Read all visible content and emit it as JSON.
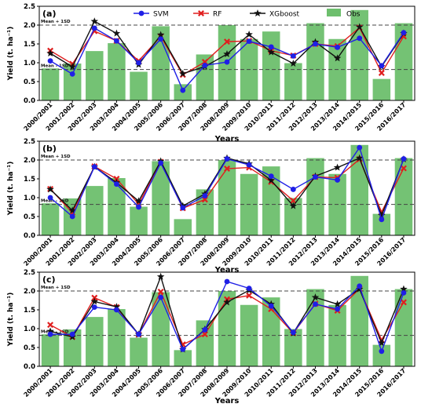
{
  "legend": {
    "items": [
      {
        "label": "SVM",
        "color": "#1f1fe6",
        "marker": "circle"
      },
      {
        "label": "RF",
        "color": "#e01e1e",
        "marker": "x"
      },
      {
        "label": "XGboost",
        "color": "#111111",
        "marker": "star"
      },
      {
        "label": "Obs",
        "color": "#6dbf6d",
        "marker": "bar"
      }
    ]
  },
  "chart_data": [
    {
      "panel": "(a)",
      "type": "bar+line",
      "categories": [
        "2000/2001",
        "2001/2002",
        "2002/2003",
        "2003/2004",
        "2004/2005",
        "2005/2006",
        "2006/2007",
        "2007/2008",
        "2008/2009",
        "2009/2010",
        "2010/2011",
        "2011/2012",
        "2012/2013",
        "2013/2014",
        "2014/2015",
        "2015/2016",
        "2016/2017"
      ],
      "obs": [
        0.85,
        0.98,
        1.31,
        1.52,
        0.76,
        1.97,
        0.43,
        1.22,
        2.0,
        1.63,
        1.83,
        0.99,
        2.05,
        1.63,
        2.4,
        0.57,
        2.05
      ],
      "series": [
        {
          "name": "SVM",
          "values": [
            1.05,
            0.7,
            1.92,
            1.58,
            1.0,
            1.63,
            0.27,
            0.93,
            1.02,
            1.57,
            1.42,
            1.18,
            1.5,
            1.41,
            1.65,
            0.92,
            1.8
          ]
        },
        {
          "name": "RF",
          "values": [
            1.32,
            0.97,
            1.84,
            1.58,
            1.05,
            1.7,
            0.68,
            1.02,
            1.56,
            1.58,
            1.32,
            1.19,
            1.5,
            1.44,
            1.93,
            0.73,
            1.7
          ]
        },
        {
          "name": "XGboost",
          "values": [
            1.25,
            0.89,
            2.1,
            1.78,
            0.95,
            1.74,
            0.71,
            0.9,
            1.23,
            1.75,
            1.28,
            0.98,
            1.55,
            1.12,
            1.95,
            0.9,
            1.78
          ]
        }
      ],
      "mean_plus_sd": 2.0,
      "mean_minus_sd": 0.82,
      "mean_plus_label": "Mean + 1SD",
      "mean_minus_label": "Mean - 1SD",
      "ylabel": "Yield (t. ha⁻¹)",
      "xlabel": "Years",
      "ylim": [
        0,
        2.5
      ],
      "yticks": [
        "0.0",
        "0.5",
        "1.0",
        "1.5",
        "2.0",
        "2.5"
      ],
      "grid": false
    },
    {
      "panel": "(b)",
      "type": "bar+line",
      "categories": [
        "2000/2001",
        "2001/2002",
        "2002/2003",
        "2003/2004",
        "2004/2005",
        "2005/2006",
        "2006/2007",
        "2007/2008",
        "2008/2009",
        "2009/2010",
        "2010/2011",
        "2011/2012",
        "2012/2013",
        "2013/2014",
        "2014/2015",
        "2015/2016",
        "2016/2017"
      ],
      "obs": [
        0.85,
        0.98,
        1.31,
        1.52,
        0.76,
        1.97,
        0.43,
        1.22,
        2.0,
        1.63,
        1.83,
        0.99,
        2.05,
        1.63,
        2.4,
        0.57,
        2.05
      ],
      "series": [
        {
          "name": "SVM",
          "values": [
            1.0,
            0.5,
            1.82,
            1.36,
            0.75,
            1.92,
            0.73,
            1.05,
            2.03,
            1.87,
            1.57,
            1.22,
            1.55,
            1.47,
            2.33,
            0.42,
            2.03
          ]
        },
        {
          "name": "RF",
          "values": [
            1.23,
            0.6,
            1.83,
            1.5,
            0.83,
            1.95,
            0.72,
            0.95,
            1.77,
            1.8,
            1.42,
            0.92,
            1.55,
            1.53,
            2.02,
            0.62,
            1.78
          ]
        },
        {
          "name": "XGboost",
          "values": [
            1.22,
            0.66,
            1.82,
            1.4,
            0.91,
            1.97,
            0.78,
            1.1,
            2.05,
            1.9,
            1.46,
            0.78,
            1.57,
            1.8,
            2.05,
            0.53,
            2.02
          ]
        }
      ],
      "mean_plus_sd": 2.0,
      "mean_minus_sd": 0.82,
      "mean_plus_label": "Mean + 1SD",
      "mean_minus_label": "Mean - 1SD",
      "ylabel": "Yield (t. ha⁻¹)",
      "xlabel": "Years",
      "ylim": [
        0,
        2.5
      ],
      "yticks": [
        "0.0",
        "0.5",
        "1.0",
        "1.5",
        "2.0",
        "2.5"
      ],
      "grid": false
    },
    {
      "panel": "(c)",
      "type": "bar+line",
      "categories": [
        "2000/2001",
        "2001/2002",
        "2002/2003",
        "2003/2004",
        "2004/2005",
        "2005/2006",
        "2006/2007",
        "2007/2008",
        "2008/2009",
        "2009/2010",
        "2010/2011",
        "2011/2012",
        "2012/2013",
        "2013/2014",
        "2014/2015",
        "2015/2016",
        "2016/2017"
      ],
      "obs": [
        0.85,
        0.98,
        1.31,
        1.52,
        0.76,
        1.97,
        0.43,
        1.22,
        2.0,
        1.63,
        1.83,
        0.99,
        2.05,
        1.63,
        2.4,
        0.57,
        2.05
      ],
      "series": [
        {
          "name": "SVM",
          "values": [
            0.85,
            0.85,
            1.57,
            1.5,
            0.85,
            1.83,
            0.45,
            0.97,
            2.25,
            2.07,
            1.6,
            0.9,
            1.65,
            1.52,
            2.13,
            0.4,
            1.95
          ]
        },
        {
          "name": "RF",
          "values": [
            1.1,
            0.78,
            1.82,
            1.57,
            0.84,
            1.98,
            0.58,
            0.85,
            1.78,
            1.88,
            1.52,
            0.88,
            1.66,
            1.48,
            2.06,
            0.7,
            1.7
          ]
        },
        {
          "name": "XGboost",
          "values": [
            0.93,
            0.78,
            1.72,
            1.58,
            0.85,
            2.38,
            0.45,
            0.98,
            1.7,
            2.02,
            1.65,
            0.88,
            1.83,
            1.65,
            2.05,
            0.62,
            2.05
          ]
        }
      ],
      "mean_plus_sd": 2.0,
      "mean_minus_sd": 0.82,
      "mean_plus_label": "Mean + 1SD",
      "mean_minus_label": "Mean - 1SD",
      "ylabel": "Yield (t. ha⁻¹)",
      "xlabel": "Years",
      "ylim": [
        0,
        2.5
      ],
      "yticks": [
        "0.0",
        "0.5",
        "1.0",
        "1.5",
        "2.0",
        "2.5"
      ],
      "grid": false
    }
  ]
}
